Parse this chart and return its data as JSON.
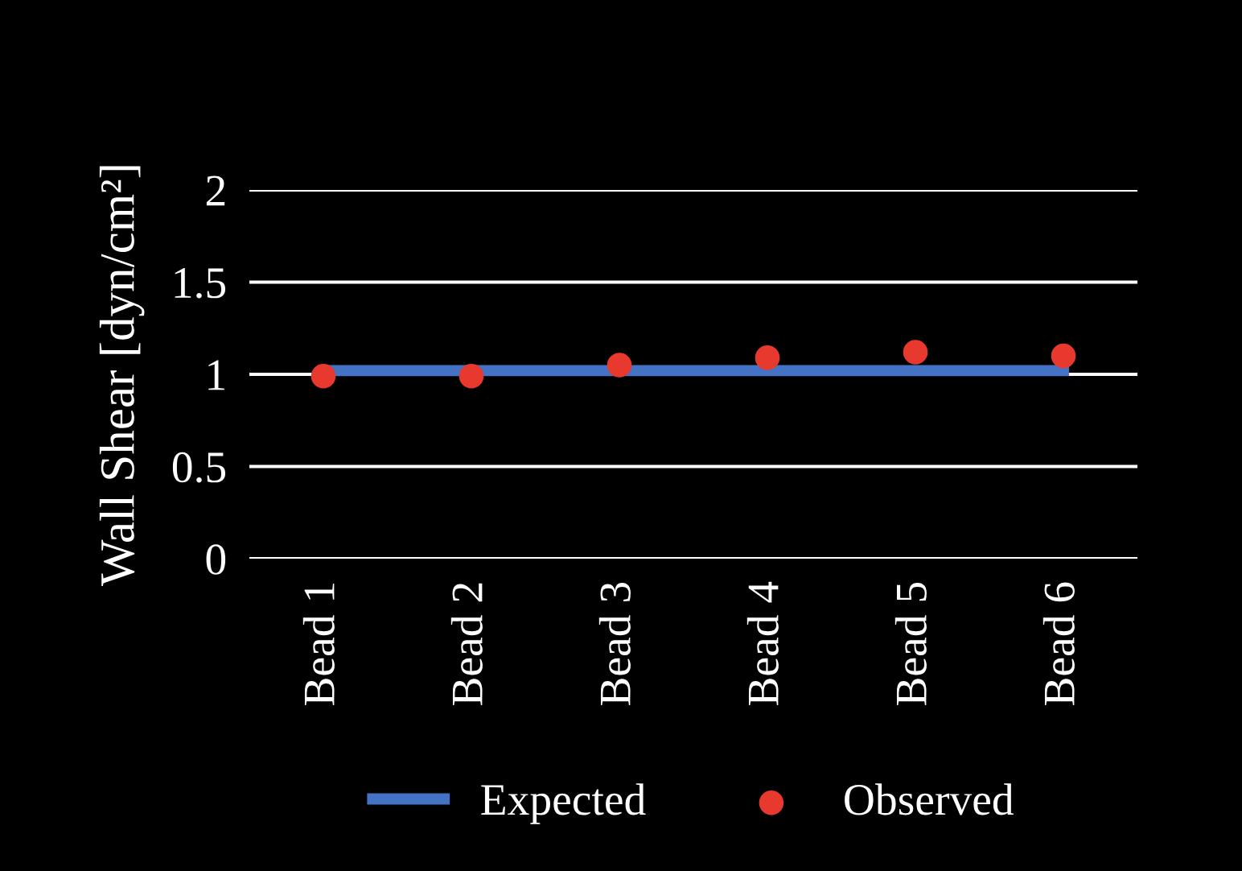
{
  "chart_data": {
    "type": "line",
    "ylabel": "Wall Shear [dyn/cm²]",
    "categories": [
      "Bead 1",
      "Bead 2",
      "Bead 3",
      "Bead 4",
      "Bead 5",
      "Bead 6"
    ],
    "series": [
      {
        "name": "Expected",
        "color": "#4472c4",
        "values": [
          1.02,
          1.02,
          1.02,
          1.02,
          1.02,
          1.02
        ],
        "marker": "none"
      },
      {
        "name": "Observed",
        "type": "scatter",
        "color": "#e8392f",
        "values": [
          0.99,
          0.99,
          1.05,
          1.09,
          1.12,
          1.1
        ],
        "marker": "circle"
      }
    ],
    "ylim": [
      0,
      2
    ],
    "yticks": [
      0,
      0.5,
      1,
      1.5,
      2
    ],
    "grid": "y",
    "legend": "bottom"
  }
}
